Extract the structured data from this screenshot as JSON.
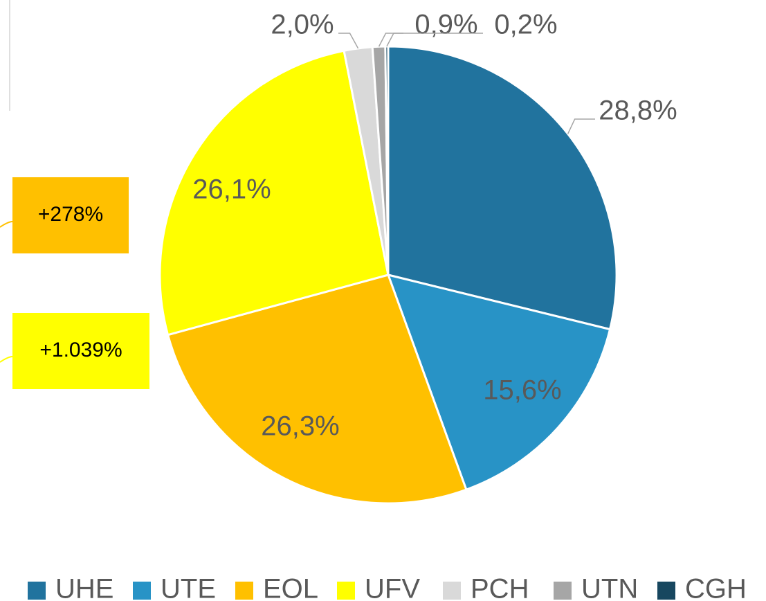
{
  "chart_data": {
    "type": "pie",
    "categories": [
      "UHE",
      "UTE",
      "EOL",
      "UFV",
      "PCH",
      "UTN",
      "CGH"
    ],
    "values": [
      28.8,
      15.6,
      26.3,
      26.1,
      2.0,
      0.9,
      0.2
    ],
    "value_labels": [
      "28,8%",
      "15,6%",
      "26,3%",
      "26,1%",
      "2,0%",
      "0,9%",
      "0,2%"
    ],
    "colors": [
      "#21739e",
      "#2893c6",
      "#ffc000",
      "#ffff00",
      "#d9d9d9",
      "#a6a6a6",
      "#17475f"
    ],
    "annotations": [
      {
        "text": "+278%",
        "color": "#ffc000"
      },
      {
        "text": "+1.039%",
        "color": "#ffff00"
      }
    ],
    "legend": "bottom"
  }
}
